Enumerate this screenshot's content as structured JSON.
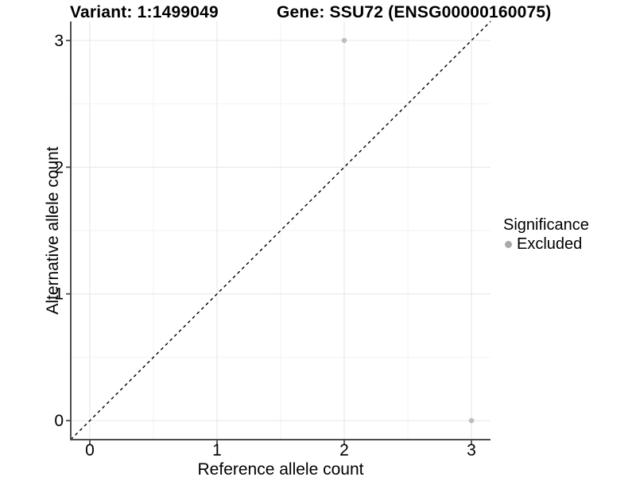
{
  "chart_data": {
    "type": "scatter",
    "title_left": "Variant: 1:1499049",
    "title_right": "Gene: SSU72 (ENSG00000160075)",
    "xlabel": "Reference allele count",
    "ylabel": "Alternative allele count",
    "xlim": [
      -0.15,
      3.15
    ],
    "ylim": [
      -0.15,
      3.15
    ],
    "xticks": [
      0,
      1,
      2,
      3
    ],
    "yticks": [
      0,
      1,
      2,
      3
    ],
    "minor_gridlines_x": [
      0.5,
      1.5,
      2.5
    ],
    "minor_gridlines_y": [
      0.5,
      1.5,
      2.5
    ],
    "grid": "major and minor, on white background",
    "identity_line": {
      "style": "dashed",
      "equation": "y = x",
      "span": "full panel diagonal"
    },
    "series": [
      {
        "name": "Excluded",
        "color": "#bebebe",
        "points": [
          {
            "x": 2,
            "y": 3
          },
          {
            "x": 3,
            "y": 0
          }
        ]
      }
    ],
    "legend": {
      "title": "Significance",
      "position": "right",
      "items": [
        {
          "label": "Excluded",
          "color": "#a9a9a9",
          "marker": "circle-icon"
        }
      ]
    },
    "colors": {
      "axis_line": "#4d4d4d",
      "grid_major": "#e6e6e6",
      "grid_minor": "#f3f3f3",
      "identity_line": "#000000",
      "text": "#000000",
      "background": "#ffffff"
    }
  }
}
